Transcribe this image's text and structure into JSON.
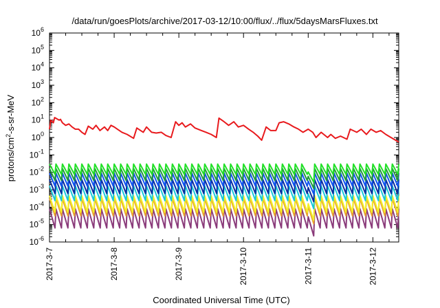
{
  "chart_data": {
    "type": "line",
    "title": "/data/run/goesPlots/archive/2017-03-12/10:00/flux/../flux/5daysMarsFluxes.txt",
    "xlabel": "Coordinated Universal Time (UTC)",
    "ylabel": {
      "prefix": "protons/cm",
      "sup": "2",
      "suffix": "-s-sr-MeV"
    },
    "x_ticks": [
      {
        "value": 0.0,
        "label": "2017-3-7"
      },
      {
        "value": 1.0,
        "label": "2017-3-8"
      },
      {
        "value": 2.0,
        "label": "2017-3-9"
      },
      {
        "value": 3.0,
        "label": "2017-3-10"
      },
      {
        "value": 4.0,
        "label": "2017-3-11"
      },
      {
        "value": 5.0,
        "label": "2017-3-12"
      }
    ],
    "xlim": [
      0,
      5.4
    ],
    "y_scale": "log",
    "y_ticks": [
      -6,
      -5,
      -4,
      -3,
      -2,
      -1,
      0,
      1,
      2,
      3,
      4,
      5,
      6
    ],
    "ylim_exp": [
      -6,
      6
    ],
    "grid": false,
    "series": [
      {
        "color": "#e8191c",
        "points": [
          [
            0,
            3
          ],
          [
            0.02,
            10
          ],
          [
            0.06,
            7
          ],
          [
            0.08,
            14
          ],
          [
            0.15,
            10
          ],
          [
            0.17,
            11
          ],
          [
            0.2,
            7
          ],
          [
            0.25,
            5
          ],
          [
            0.3,
            6
          ],
          [
            0.35,
            4
          ],
          [
            0.4,
            3
          ],
          [
            0.45,
            3
          ],
          [
            0.5,
            2
          ],
          [
            0.55,
            1.5
          ],
          [
            0.6,
            4.5
          ],
          [
            0.67,
            3
          ],
          [
            0.72,
            5
          ],
          [
            0.78,
            2.5
          ],
          [
            0.85,
            4
          ],
          [
            0.9,
            2.5
          ],
          [
            0.95,
            5
          ],
          [
            1.0,
            4
          ],
          [
            1.05,
            3
          ],
          [
            1.12,
            2
          ],
          [
            1.2,
            1.5
          ],
          [
            1.3,
            0.9
          ],
          [
            1.35,
            3.5
          ],
          [
            1.45,
            2
          ],
          [
            1.5,
            4
          ],
          [
            1.58,
            2
          ],
          [
            1.65,
            1.8
          ],
          [
            1.73,
            2
          ],
          [
            1.8,
            1.3
          ],
          [
            1.88,
            1
          ],
          [
            1.95,
            8
          ],
          [
            2.0,
            5
          ],
          [
            2.05,
            7
          ],
          [
            2.1,
            4
          ],
          [
            2.18,
            6
          ],
          [
            2.25,
            3.5
          ],
          [
            2.35,
            2.5
          ],
          [
            2.42,
            2
          ],
          [
            2.5,
            1.5
          ],
          [
            2.58,
            1
          ],
          [
            2.62,
            13
          ],
          [
            2.7,
            8
          ],
          [
            2.77,
            5
          ],
          [
            2.85,
            8
          ],
          [
            2.92,
            4
          ],
          [
            3.0,
            5
          ],
          [
            3.08,
            3
          ],
          [
            3.15,
            2
          ],
          [
            3.22,
            1.2
          ],
          [
            3.28,
            0.7
          ],
          [
            3.35,
            4
          ],
          [
            3.42,
            2.5
          ],
          [
            3.5,
            2.5
          ],
          [
            3.55,
            7
          ],
          [
            3.62,
            8
          ],
          [
            3.7,
            6
          ],
          [
            3.78,
            4
          ],
          [
            3.85,
            3
          ],
          [
            3.92,
            2
          ],
          [
            4.0,
            3
          ],
          [
            4.07,
            2
          ],
          [
            4.12,
            1
          ],
          [
            4.2,
            2
          ],
          [
            4.3,
            1
          ],
          [
            4.35,
            1.5
          ],
          [
            4.42,
            0.9
          ],
          [
            4.5,
            1.2
          ],
          [
            4.6,
            0.8
          ],
          [
            4.65,
            3
          ],
          [
            4.75,
            2
          ],
          [
            4.82,
            3
          ],
          [
            4.9,
            1.5
          ],
          [
            4.97,
            3
          ],
          [
            5.05,
            2
          ],
          [
            5.12,
            2.5
          ],
          [
            5.2,
            1.5
          ],
          [
            5.28,
            1
          ],
          [
            5.35,
            0.7
          ],
          [
            5.4,
            0.55
          ]
        ]
      },
      {
        "color": "#22e028",
        "base": 0.012,
        "amp": 2.5
      },
      {
        "color": "#1f9a3a",
        "base": 0.006,
        "amp": 2.8
      },
      {
        "color": "#1155ee",
        "base": 0.003,
        "amp": 3.0
      },
      {
        "color": "#0a2d9e",
        "base": 0.0012,
        "amp": 3.2
      },
      {
        "color": "#18c8d8",
        "base": 0.0005,
        "amp": 3.4
      },
      {
        "color": "#f3f028",
        "base": 0.00012,
        "amp": 3.8
      },
      {
        "color": "#e8a030",
        "base": 8e-05,
        "amp": 4.0
      },
      {
        "color": "#8a3a7a",
        "base": 1.8e-05,
        "amp": 4.5
      }
    ]
  }
}
